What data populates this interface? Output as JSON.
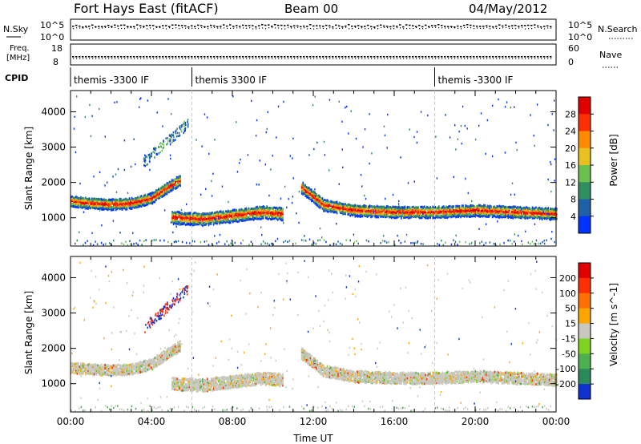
{
  "header": {
    "title": "Fort Hays East (fitACF)",
    "beam": "Beam 00",
    "date": "04/May/2012"
  },
  "top_panels": {
    "nsky_label": "N.Sky",
    "nsky_ticks": [
      "10^5",
      "10^0"
    ],
    "nsearch_label": "N.Search",
    "nsearch_ticks": [
      "10^5",
      "10^0"
    ],
    "freq_label_1": "Freq.",
    "freq_label_2": "[MHz]",
    "freq_ticks": [
      "18",
      "8"
    ],
    "nave_label": "Nave",
    "nave_ticks": [
      "60",
      "0"
    ],
    "cpid_label": "CPID",
    "cpid_segments": [
      {
        "label": "themis -3300 IF",
        "start_hour": 0
      },
      {
        "label": "themis 3300 IF",
        "start_hour": 6
      },
      {
        "label": "themis -3300 IF",
        "start_hour": 18
      }
    ]
  },
  "chart_data": [
    {
      "type": "heatmap",
      "quantity": "Power",
      "colorbar_label": "Power [dB]",
      "colorbar_ticks": [
        "28",
        "24",
        "20",
        "16",
        "12",
        "8",
        "4"
      ],
      "colors": [
        "#0033ff",
        "#2060a8",
        "#2f8f5f",
        "#6cc050",
        "#e8c020",
        "#ff8a00",
        "#ff3000",
        "#e00000"
      ],
      "ylabel": "Slant Range [km]",
      "yticks": [
        "4000",
        "3000",
        "2000",
        "1000"
      ],
      "ylim": [
        200,
        4600
      ],
      "xlim": [
        0,
        24
      ],
      "bands": [
        {
          "x": [
            0,
            1,
            2,
            3,
            4,
            4.8,
            5.4
          ],
          "y": [
            1500,
            1450,
            1420,
            1450,
            1600,
            1900,
            2100
          ],
          "thickness": 300
        },
        {
          "x": [
            5.0,
            6.5,
            8.0,
            9.5,
            10.5
          ],
          "y": [
            1050,
            1000,
            1100,
            1200,
            1150
          ],
          "thickness": 350
        },
        {
          "x": [
            11.4,
            12.5,
            14,
            16,
            18,
            20,
            22,
            24
          ],
          "y": [
            1900,
            1400,
            1250,
            1200,
            1200,
            1250,
            1200,
            1150
          ],
          "thickness": 320
        }
      ]
    },
    {
      "type": "heatmap",
      "quantity": "Velocity",
      "colorbar_label": "Velocity [m s^-1]",
      "colorbar_ticks": [
        "200",
        "100",
        "50",
        "15",
        "-15",
        "-50",
        "-100",
        "-200"
      ],
      "colors": [
        "#1030d0",
        "#2a8a5a",
        "#4caf50",
        "#7ed321",
        "#c8c8c0",
        "#ffa500",
        "#ff7000",
        "#ff3000",
        "#e00000"
      ],
      "ylabel": "Slant Range [km]",
      "yticks": [
        "4000",
        "3000",
        "2000",
        "1000"
      ],
      "ylim": [
        200,
        4600
      ],
      "xlim": [
        0,
        24
      ],
      "xticks": [
        "00:00",
        "04:00",
        "08:00",
        "12:00",
        "16:00",
        "20:00",
        "00:00"
      ],
      "xlabel": "Time UT",
      "bands": [
        {
          "x": [
            0,
            1,
            2,
            3,
            4,
            4.8,
            5.4
          ],
          "y": [
            1500,
            1450,
            1420,
            1450,
            1600,
            1900,
            2100
          ],
          "thickness": 300
        },
        {
          "x": [
            5.0,
            6.5,
            8.0,
            9.5,
            10.5
          ],
          "y": [
            1050,
            1000,
            1100,
            1200,
            1150
          ],
          "thickness": 350
        },
        {
          "x": [
            11.4,
            12.5,
            14,
            16,
            18,
            20,
            22,
            24
          ],
          "y": [
            1900,
            1400,
            1250,
            1200,
            1200,
            1250,
            1200,
            1150
          ],
          "thickness": 320
        }
      ]
    }
  ]
}
